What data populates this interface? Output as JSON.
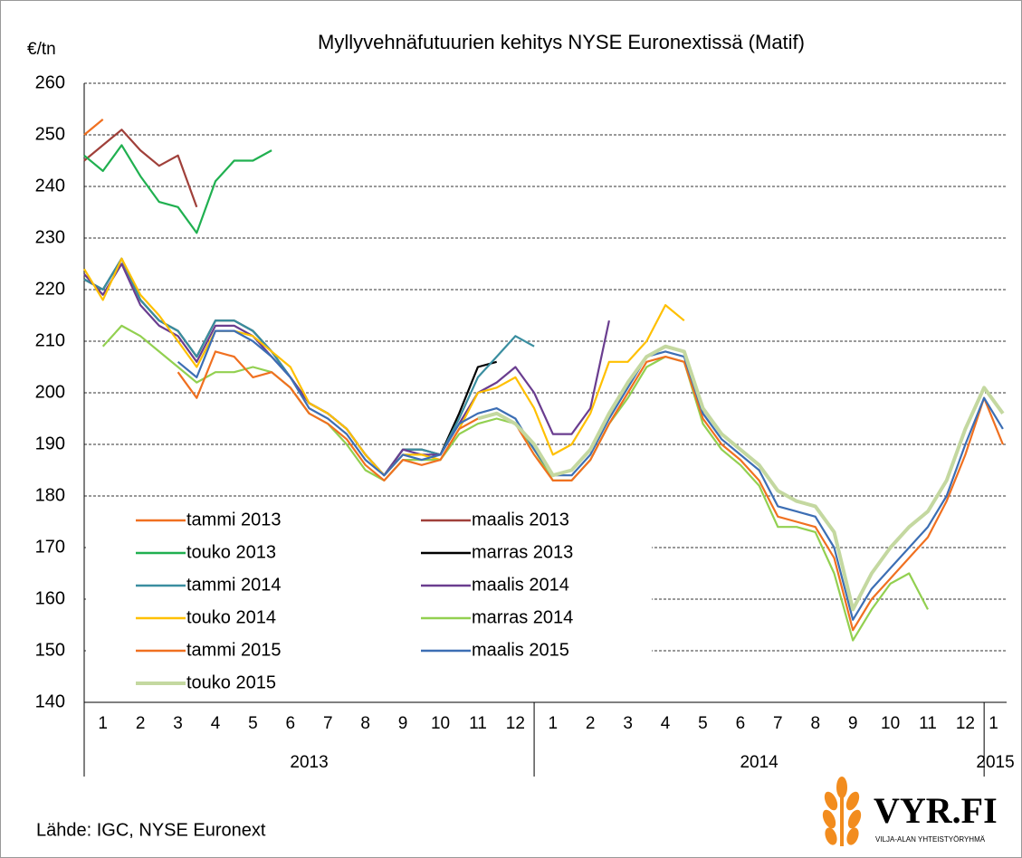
{
  "chart_data": {
    "type": "line",
    "title": "Myllyvehnäfutuurien  kehitys NYSE Euronextissä (Matif)",
    "y_label": "€/tn",
    "ylim": [
      140,
      260
    ],
    "yticks": [
      140,
      150,
      160,
      170,
      180,
      190,
      200,
      210,
      220,
      230,
      240,
      250,
      260
    ],
    "xlim": [
      0,
      24.6
    ],
    "xticks": [
      {
        "value": 0.5,
        "label": "1"
      },
      {
        "value": 1.5,
        "label": "2"
      },
      {
        "value": 2.5,
        "label": "3"
      },
      {
        "value": 3.5,
        "label": "4"
      },
      {
        "value": 4.5,
        "label": "5"
      },
      {
        "value": 5.5,
        "label": "6"
      },
      {
        "value": 6.5,
        "label": "7"
      },
      {
        "value": 7.5,
        "label": "8"
      },
      {
        "value": 8.5,
        "label": "9"
      },
      {
        "value": 9.5,
        "label": "10"
      },
      {
        "value": 10.5,
        "label": "11"
      },
      {
        "value": 11.5,
        "label": "12"
      },
      {
        "value": 12.5,
        "label": "1"
      },
      {
        "value": 13.5,
        "label": "2"
      },
      {
        "value": 14.5,
        "label": "3"
      },
      {
        "value": 15.5,
        "label": "4"
      },
      {
        "value": 16.5,
        "label": "5"
      },
      {
        "value": 17.5,
        "label": "6"
      },
      {
        "value": 18.5,
        "label": "7"
      },
      {
        "value": 19.5,
        "label": "8"
      },
      {
        "value": 20.5,
        "label": "9"
      },
      {
        "value": 21.5,
        "label": "10"
      },
      {
        "value": 22.5,
        "label": "11"
      },
      {
        "value": 23.5,
        "label": "12"
      },
      {
        "value": 24.25,
        "label": "1"
      }
    ],
    "x_groups": [
      "2013",
      "2014",
      "2015"
    ],
    "grid": true,
    "x": [
      0,
      0.5,
      1,
      1.5,
      2,
      2.5,
      3,
      3.5,
      4,
      4.5,
      5,
      5.5,
      6,
      6.5,
      7,
      7.5,
      8,
      8.5,
      9,
      9.5,
      10,
      10.5,
      11,
      11.5,
      12,
      12.5,
      13,
      13.5,
      14,
      14.5,
      15,
      15.5,
      16,
      16.5,
      17,
      17.5,
      18,
      18.5,
      19,
      19.5,
      20,
      20.5,
      21,
      21.5,
      22,
      22.5,
      23,
      23.5,
      24,
      24.5
    ],
    "series": [
      {
        "name": "tammi 2013",
        "color": "#f07020",
        "values": [
          250,
          253,
          null,
          null,
          null,
          null,
          null,
          null,
          null,
          null,
          null,
          null,
          null,
          null,
          null,
          null,
          null,
          null,
          null,
          null,
          null,
          null,
          null,
          null,
          null,
          null,
          null,
          null,
          null,
          null,
          null,
          null,
          null,
          null,
          null,
          null,
          null,
          null,
          null,
          null,
          null,
          null,
          null,
          null,
          null,
          null,
          null,
          null,
          null,
          null
        ]
      },
      {
        "name": "maalis 2013",
        "color": "#a0403a",
        "values": [
          245,
          248,
          251,
          247,
          244,
          246,
          236,
          null,
          null,
          null,
          null,
          null,
          null,
          null,
          null,
          null,
          null,
          null,
          null,
          null,
          null,
          null,
          null,
          null,
          null,
          null,
          null,
          null,
          null,
          null,
          null,
          null,
          null,
          null,
          null,
          null,
          null,
          null,
          null,
          null,
          null,
          null,
          null,
          null,
          null,
          null,
          null,
          null,
          null,
          null
        ]
      },
      {
        "name": "touko 2013",
        "color": "#20b050",
        "values": [
          246,
          243,
          248,
          242,
          237,
          236,
          231,
          241,
          245,
          245,
          247,
          null,
          null,
          null,
          null,
          null,
          null,
          null,
          null,
          null,
          null,
          null,
          null,
          null,
          null,
          null,
          null,
          null,
          null,
          null,
          null,
          null,
          null,
          null,
          null,
          null,
          null,
          null,
          null,
          null,
          null,
          null,
          null,
          null,
          null,
          null,
          null,
          null,
          null,
          null
        ]
      },
      {
        "name": "marras 2013",
        "color": "#000000",
        "values": [
          222,
          220,
          226,
          218,
          214,
          212,
          207,
          214,
          214,
          212,
          208,
          203,
          198,
          196,
          193,
          188,
          184,
          189,
          189,
          188,
          196,
          205,
          206,
          null,
          null,
          null,
          null,
          null,
          null,
          null,
          null,
          null,
          null,
          null,
          null,
          null,
          null,
          null,
          null,
          null,
          null,
          null,
          null,
          null,
          null,
          null,
          null,
          null,
          null,
          null
        ]
      },
      {
        "name": "tammi 2014",
        "color": "#3a8ea0",
        "values": [
          222,
          220,
          226,
          218,
          214,
          212,
          207,
          214,
          214,
          212,
          208,
          203,
          198,
          196,
          193,
          188,
          184,
          189,
          189,
          188,
          195,
          203,
          207,
          211,
          209,
          null,
          null,
          null,
          null,
          null,
          null,
          null,
          null,
          null,
          null,
          null,
          null,
          null,
          null,
          null,
          null,
          null,
          null,
          null,
          null,
          null,
          null,
          null,
          null,
          null
        ]
      },
      {
        "name": "maalis 2014",
        "color": "#6a3d8f",
        "values": [
          223,
          219,
          225,
          217,
          213,
          211,
          206,
          213,
          213,
          211,
          207,
          203,
          198,
          196,
          193,
          188,
          184,
          189,
          188,
          188,
          194,
          200,
          202,
          205,
          200,
          192,
          192,
          197,
          214,
          null,
          null,
          null,
          null,
          null,
          null,
          null,
          null,
          null,
          null,
          null,
          null,
          null,
          null,
          null,
          null,
          null,
          null,
          null,
          null,
          null
        ]
      },
      {
        "name": "touko 2014",
        "color": "#ffc000",
        "values": [
          224,
          218,
          226,
          219,
          215,
          210,
          205,
          212,
          212,
          211,
          208,
          205,
          198,
          196,
          193,
          188,
          184,
          188,
          188,
          187,
          193,
          200,
          201,
          203,
          197,
          188,
          190,
          196,
          206,
          206,
          210,
          217,
          214,
          null,
          null,
          null,
          null,
          null,
          null,
          null,
          null,
          null,
          null,
          null,
          null,
          null,
          null,
          null,
          null,
          null
        ]
      },
      {
        "name": "marras 2014",
        "color": "#92d050",
        "values": [
          null,
          209,
          213,
          211,
          208,
          205,
          202,
          204,
          204,
          205,
          204,
          201,
          196,
          194,
          190,
          185,
          183,
          187,
          187,
          187,
          192,
          194,
          195,
          194,
          189,
          183,
          183,
          187,
          194,
          199,
          205,
          207,
          206,
          194,
          189,
          186,
          182,
          174,
          174,
          173,
          165,
          152,
          158,
          163,
          165,
          158,
          null,
          null,
          null,
          null
        ]
      },
      {
        "name": "tammi 2015",
        "color": "#f07020",
        "values": [
          null,
          null,
          null,
          null,
          null,
          204,
          199,
          208,
          207,
          203,
          204,
          201,
          196,
          194,
          191,
          186,
          183,
          187,
          186,
          187,
          193,
          195,
          196,
          194,
          188,
          183,
          183,
          187,
          194,
          200,
          206,
          207,
          206,
          195,
          190,
          187,
          183,
          176,
          175,
          174,
          168,
          154,
          160,
          164,
          168,
          172,
          179,
          188,
          199,
          190
        ]
      },
      {
        "name": "maalis 2015",
        "color": "#3c6eb4",
        "values": [
          null,
          null,
          null,
          null,
          null,
          206,
          203,
          212,
          212,
          210,
          207,
          203,
          197,
          195,
          192,
          187,
          184,
          188,
          187,
          188,
          194,
          196,
          197,
          195,
          189,
          184,
          184,
          188,
          195,
          201,
          207,
          208,
          207,
          196,
          191,
          188,
          185,
          178,
          177,
          176,
          170,
          156,
          162,
          166,
          170,
          174,
          180,
          190,
          199,
          193
        ]
      },
      {
        "name": "touko 2015",
        "color": "#c4d8a0",
        "values": [
          null,
          null,
          null,
          null,
          null,
          null,
          null,
          null,
          null,
          null,
          null,
          null,
          null,
          null,
          null,
          null,
          null,
          null,
          null,
          null,
          null,
          195,
          196,
          194,
          190,
          184,
          185,
          189,
          196,
          202,
          207,
          209,
          208,
          197,
          192,
          189,
          186,
          181,
          179,
          178,
          173,
          158,
          165,
          170,
          174,
          177,
          183,
          193,
          201,
          196
        ]
      }
    ]
  },
  "footer": {
    "source": "Lähde: IGC, NYSE Euronext",
    "logo": "VYR.FI",
    "logo_subtitle": "VILJA-ALAN YHTEISTYÖRYHMÄ"
  }
}
